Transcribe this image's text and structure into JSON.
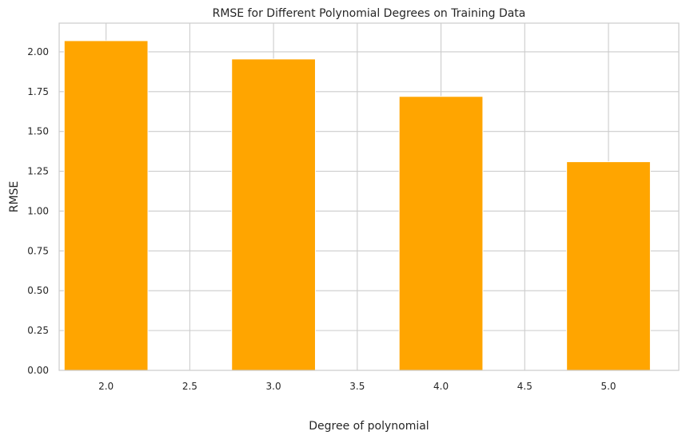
{
  "chart_data": {
    "type": "bar",
    "title": "RMSE for Different Polynomial Degrees on Training Data",
    "xlabel": "Degree of polynomial",
    "ylabel": "RMSE",
    "x": [
      2,
      3,
      4,
      5
    ],
    "values": [
      2.07,
      1.955,
      1.72,
      1.31
    ],
    "bar_width": 0.5,
    "xlim": [
      1.72,
      5.42
    ],
    "ylim": [
      0,
      2.18
    ],
    "x_ticks": [
      "2.0",
      "2.5",
      "3.0",
      "3.5",
      "4.0",
      "4.5",
      "5.0"
    ],
    "y_ticks": [
      "0.00",
      "0.25",
      "0.50",
      "0.75",
      "1.00",
      "1.25",
      "1.50",
      "1.75",
      "2.00"
    ],
    "bar_color": "#ffa500",
    "grid": true
  }
}
